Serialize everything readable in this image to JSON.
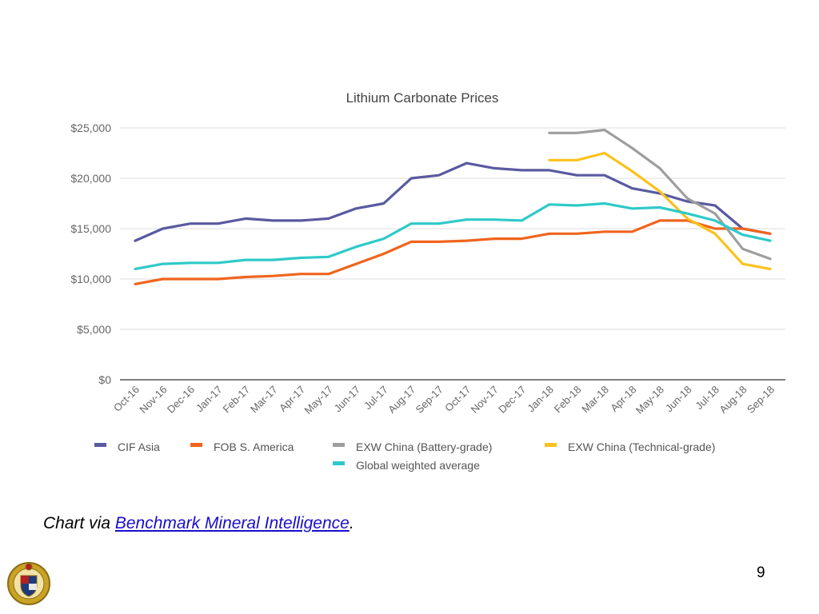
{
  "chart_data": {
    "type": "line",
    "title": "Lithium Carbonate Prices",
    "xlabel": "",
    "ylabel": "",
    "ylim": [
      0,
      25000
    ],
    "yticks": [
      0,
      5000,
      10000,
      15000,
      20000,
      25000
    ],
    "ytick_labels": [
      "$0",
      "$5,000",
      "$10,000",
      "$15,000",
      "$20,000",
      "$25,000"
    ],
    "grid": true,
    "legend_position": "bottom",
    "categories": [
      "Oct-16",
      "Nov-16",
      "Dec-16",
      "Jan-17",
      "Feb-17",
      "Mar-17",
      "Apr-17",
      "May-17",
      "Jun-17",
      "Jul-17",
      "Aug-17",
      "Sep-17",
      "Oct-17",
      "Nov-17",
      "Dec-17",
      "Jan-18",
      "Feb-18",
      "Mar-18",
      "Apr-18",
      "May-18",
      "Jun-18",
      "Jul-18",
      "Aug-18",
      "Sep-18"
    ],
    "series": [
      {
        "name": "CIF Asia",
        "color": "#5a5aa0",
        "values": [
          13800,
          15000,
          15500,
          15500,
          16000,
          15800,
          15800,
          16000,
          17000,
          17500,
          20000,
          20300,
          21500,
          21000,
          20800,
          20800,
          20300,
          20300,
          19000,
          18500,
          17700,
          17300,
          15000,
          14500
        ]
      },
      {
        "name": "FOB S. America",
        "color": "#f0641e",
        "values": [
          9500,
          10000,
          10000,
          10000,
          10200,
          10300,
          10500,
          10500,
          11500,
          12500,
          13700,
          13700,
          13800,
          14000,
          14000,
          14500,
          14500,
          14700,
          14700,
          15800,
          15800,
          15000,
          15000,
          14500
        ]
      },
      {
        "name": "EXW China (Battery-grade)",
        "color": "#9e9e9e",
        "values": [
          null,
          null,
          null,
          null,
          null,
          null,
          null,
          null,
          null,
          null,
          null,
          null,
          null,
          null,
          null,
          24500,
          24500,
          24800,
          23000,
          21000,
          18000,
          16500,
          13000,
          12000
        ]
      },
      {
        "name": "EXW China (Technical-grade)",
        "color": "#fcc21b",
        "values": [
          null,
          null,
          null,
          null,
          null,
          null,
          null,
          null,
          null,
          null,
          null,
          null,
          null,
          null,
          null,
          21800,
          21800,
          22500,
          20700,
          18700,
          16000,
          14500,
          11500,
          11000
        ]
      },
      {
        "name": "Global weighted average",
        "color": "#2fc9c9",
        "values": [
          11000,
          11500,
          11600,
          11600,
          11900,
          11900,
          12100,
          12200,
          13200,
          14000,
          15500,
          15500,
          15900,
          15900,
          15800,
          17400,
          17300,
          17500,
          17000,
          17100,
          16500,
          15800,
          14400,
          13800
        ]
      }
    ]
  },
  "caption": {
    "prefix": "Chart via ",
    "link_text": "Benchmark Mineral Intelligence",
    "suffix": "."
  },
  "page_number": "9",
  "logo": {
    "icon": "seal-emblem-icon",
    "colors": [
      "#c9a227",
      "#1f3a7a",
      "#b22222"
    ]
  }
}
